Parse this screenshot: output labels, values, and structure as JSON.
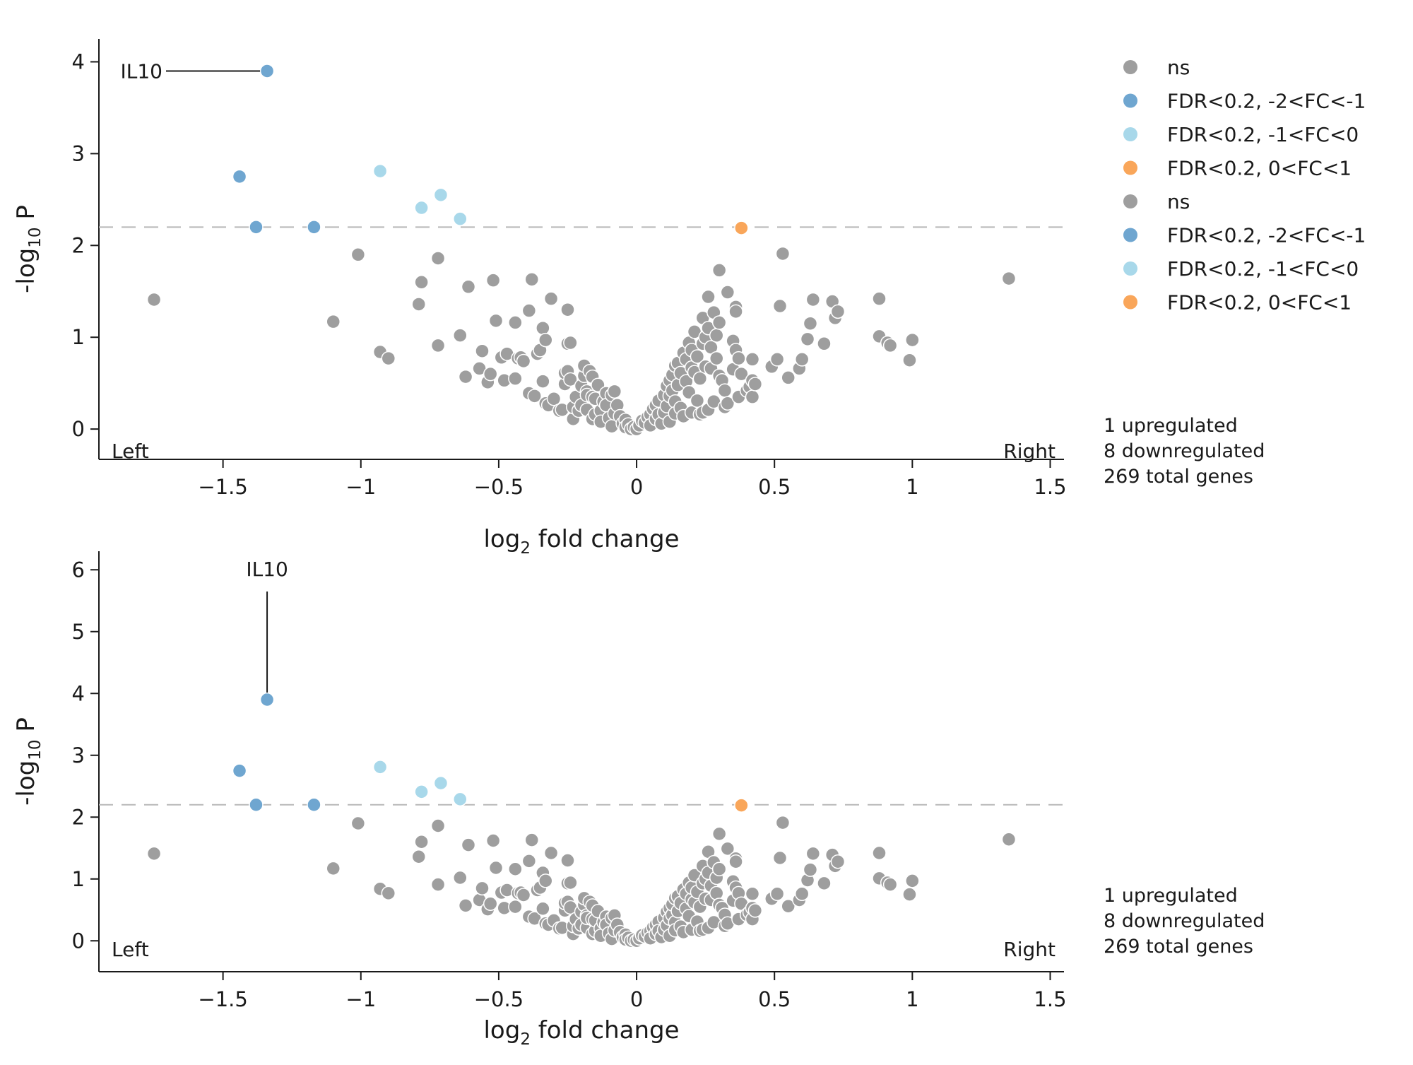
{
  "colors": {
    "ns": "#9e9e9e",
    "fc_m2_m1": "#6fa6d0",
    "fc_m1_0": "#a8d8ea",
    "fc_0_1": "#f9a65a",
    "threshold": "#b8b8b8",
    "axis": "#1a1a1a"
  },
  "legend": {
    "items": [
      {
        "label": "ns",
        "color_key": "ns"
      },
      {
        "label": "FDR<0.2, -2<FC<-1",
        "color_key": "fc_m2_m1"
      },
      {
        "label": "FDR<0.2, -1<FC<0",
        "color_key": "fc_m1_0"
      },
      {
        "label": "FDR<0.2, 0<FC<1",
        "color_key": "fc_0_1"
      },
      {
        "label": "ns",
        "color_key": "ns"
      },
      {
        "label": "FDR<0.2, -2<FC<-1",
        "color_key": "fc_m2_m1"
      },
      {
        "label": "FDR<0.2, -1<FC<0",
        "color_key": "fc_m1_0"
      },
      {
        "label": "FDR<0.2, 0<FC<1",
        "color_key": "fc_0_1"
      }
    ]
  },
  "chart_data": [
    {
      "type": "scatter",
      "title": "",
      "xlabel_main": "log",
      "xlabel_sub": "2",
      "xlabel_rest": " fold change",
      "ylabel_main": "-log",
      "ylabel_sub": "10",
      "ylabel_rest": " P",
      "xlim": [
        -1.95,
        1.55
      ],
      "ylim": [
        -0.33,
        4.25
      ],
      "xticks": [
        -1.5,
        -1,
        -0.5,
        0,
        0.5,
        1,
        1.5
      ],
      "xtick_labels": [
        "−1.5",
        "−1",
        "−0.5",
        "0",
        "0.5",
        "1",
        "1.5"
      ],
      "yticks": [
        0,
        1,
        2,
        3,
        4
      ],
      "ytick_labels": [
        "0",
        "1",
        "2",
        "3",
        "4"
      ],
      "threshold_y": 2.2,
      "corner_left": "Left",
      "corner_right": "Right",
      "summary": [
        "1 upregulated",
        "8 downregulated",
        "269 total genes"
      ],
      "gene_label": {
        "text": "IL10",
        "x": -1.34,
        "y": 3.9,
        "label_y": 3.9,
        "side": "left"
      },
      "grid": false,
      "legend_position": "right"
    },
    {
      "type": "scatter",
      "title": "",
      "xlabel_main": "log",
      "xlabel_sub": "2",
      "xlabel_rest": " fold change",
      "ylabel_main": "-log",
      "ylabel_sub": "10",
      "ylabel_rest": " P",
      "xlim": [
        -1.95,
        1.55
      ],
      "ylim": [
        -0.5,
        6.3
      ],
      "xticks": [
        -1.5,
        -1,
        -0.5,
        0,
        0.5,
        1,
        1.5
      ],
      "xtick_labels": [
        "−1.5",
        "−1",
        "−0.5",
        "0",
        "0.5",
        "1",
        "1.5"
      ],
      "yticks": [
        0,
        1,
        2,
        3,
        4,
        5,
        6
      ],
      "ytick_labels": [
        "0",
        "1",
        "2",
        "3",
        "4",
        "5",
        "6"
      ],
      "threshold_y": 2.2,
      "corner_left": "Left",
      "corner_right": "Right",
      "summary": [
        "1 upregulated",
        "8 downregulated",
        "269 total genes"
      ],
      "gene_label": {
        "text": "IL10",
        "x": -1.34,
        "y": 3.9,
        "label_y": 5.9,
        "side": "top"
      },
      "grid": false,
      "legend_position": "right"
    }
  ],
  "points": {
    "significant": [
      {
        "x": -1.34,
        "y": 3.9,
        "c": "fc_m2_m1",
        "gene": "IL10"
      },
      {
        "x": -1.44,
        "y": 2.75,
        "c": "fc_m2_m1"
      },
      {
        "x": -1.38,
        "y": 2.2,
        "c": "fc_m2_m1"
      },
      {
        "x": -1.17,
        "y": 2.2,
        "c": "fc_m2_m1"
      },
      {
        "x": -0.93,
        "y": 2.81,
        "c": "fc_m1_0"
      },
      {
        "x": -0.78,
        "y": 2.41,
        "c": "fc_m1_0"
      },
      {
        "x": -0.71,
        "y": 2.55,
        "c": "fc_m1_0"
      },
      {
        "x": -0.64,
        "y": 2.29,
        "c": "fc_m1_0"
      },
      {
        "x": 0.38,
        "y": 2.19,
        "c": "fc_0_1"
      }
    ],
    "ns": [
      [
        -1.75,
        1.41
      ],
      [
        -1.1,
        1.17
      ],
      [
        -1.01,
        1.9
      ],
      [
        -0.93,
        0.84
      ],
      [
        -0.9,
        0.77
      ],
      [
        -0.79,
        1.36
      ],
      [
        -0.78,
        1.6
      ],
      [
        -0.72,
        1.86
      ],
      [
        -0.72,
        0.91
      ],
      [
        -0.64,
        1.02
      ],
      [
        -0.62,
        0.57
      ],
      [
        -0.61,
        1.55
      ],
      [
        -0.57,
        0.66
      ],
      [
        -0.56,
        0.85
      ],
      [
        -0.54,
        0.51
      ],
      [
        -0.53,
        0.6
      ],
      [
        -0.52,
        1.62
      ],
      [
        -0.51,
        1.18
      ],
      [
        -0.49,
        0.78
      ],
      [
        -0.48,
        0.53
      ],
      [
        -0.47,
        0.82
      ],
      [
        -0.44,
        1.16
      ],
      [
        -0.44,
        0.55
      ],
      [
        -0.43,
        0.77
      ],
      [
        -0.42,
        0.78
      ],
      [
        -0.41,
        0.74
      ],
      [
        -0.39,
        1.29
      ],
      [
        -0.39,
        0.39
      ],
      [
        -0.38,
        1.63
      ],
      [
        -0.37,
        0.36
      ],
      [
        -0.36,
        0.82
      ],
      [
        -0.35,
        0.86
      ],
      [
        -0.34,
        1.1
      ],
      [
        -0.34,
        0.52
      ],
      [
        -0.33,
        0.97
      ],
      [
        -0.33,
        0.28
      ],
      [
        -0.32,
        0.26
      ],
      [
        -0.31,
        1.42
      ],
      [
        -0.3,
        0.33
      ],
      [
        -0.28,
        0.2
      ],
      [
        -0.27,
        0.21
      ],
      [
        -0.26,
        0.49
      ],
      [
        -0.26,
        0.61
      ],
      [
        -0.25,
        1.3
      ],
      [
        -0.25,
        0.63
      ],
      [
        -0.25,
        0.93
      ],
      [
        -0.24,
        0.94
      ],
      [
        -0.24,
        0.54
      ],
      [
        -0.23,
        0.11
      ],
      [
        -0.23,
        0.24
      ],
      [
        -0.22,
        0.35
      ],
      [
        -0.21,
        0.2
      ],
      [
        -0.2,
        0.47
      ],
      [
        -0.2,
        0.26
      ],
      [
        -0.19,
        0.58
      ],
      [
        -0.19,
        0.69
      ],
      [
        -0.18,
        0.41
      ],
      [
        -0.18,
        0.21
      ],
      [
        -0.18,
        0.37
      ],
      [
        -0.17,
        0.63
      ],
      [
        -0.16,
        0.57
      ],
      [
        -0.16,
        0.11
      ],
      [
        -0.16,
        0.35
      ],
      [
        -0.15,
        0.16
      ],
      [
        -0.15,
        0.33
      ],
      [
        -0.14,
        0.48
      ],
      [
        -0.13,
        0.2
      ],
      [
        -0.13,
        0.08
      ],
      [
        -0.12,
        0.3
      ],
      [
        -0.11,
        0.39
      ],
      [
        -0.11,
        0.26
      ],
      [
        -0.1,
        0.12
      ],
      [
        -0.09,
        0.37
      ],
      [
        -0.09,
        0.03
      ],
      [
        -0.08,
        0.41
      ],
      [
        -0.08,
        0.17
      ],
      [
        -0.07,
        0.26
      ],
      [
        -0.06,
        0.14
      ],
      [
        -0.05,
        0.06
      ],
      [
        -0.04,
        0.1
      ],
      [
        -0.04,
        0.02
      ],
      [
        -0.03,
        0.05
      ],
      [
        -0.02,
        0.0
      ],
      [
        -0.01,
        0.02
      ],
      [
        0.0,
        0.0
      ],
      [
        0.01,
        0.04
      ],
      [
        0.02,
        0.09
      ],
      [
        0.03,
        0.07
      ],
      [
        0.04,
        0.13
      ],
      [
        0.05,
        0.16
      ],
      [
        0.05,
        0.04
      ],
      [
        0.06,
        0.22
      ],
      [
        0.07,
        0.11
      ],
      [
        0.07,
        0.26
      ],
      [
        0.08,
        0.31
      ],
      [
        0.08,
        0.16
      ],
      [
        0.09,
        0.06
      ],
      [
        0.1,
        0.37
      ],
      [
        0.1,
        0.18
      ],
      [
        0.11,
        0.47
      ],
      [
        0.11,
        0.25
      ],
      [
        0.12,
        0.53
      ],
      [
        0.12,
        0.36
      ],
      [
        0.12,
        0.08
      ],
      [
        0.13,
        0.42
      ],
      [
        0.13,
        0.59
      ],
      [
        0.14,
        0.69
      ],
      [
        0.14,
        0.3
      ],
      [
        0.14,
        0.17
      ],
      [
        0.15,
        0.72
      ],
      [
        0.15,
        0.48
      ],
      [
        0.16,
        0.61
      ],
      [
        0.16,
        0.23
      ],
      [
        0.17,
        0.83
      ],
      [
        0.17,
        0.14
      ],
      [
        0.18,
        0.76
      ],
      [
        0.18,
        0.52
      ],
      [
        0.19,
        0.94
      ],
      [
        0.19,
        0.4
      ],
      [
        0.2,
        0.67
      ],
      [
        0.2,
        0.18
      ],
      [
        0.2,
        0.86
      ],
      [
        0.21,
        1.06
      ],
      [
        0.21,
        0.62
      ],
      [
        0.22,
        0.31
      ],
      [
        0.22,
        0.79
      ],
      [
        0.23,
        0.55
      ],
      [
        0.23,
        0.16
      ],
      [
        0.24,
        1.21
      ],
      [
        0.24,
        0.93
      ],
      [
        0.24,
        0.18
      ],
      [
        0.25,
        0.68
      ],
      [
        0.25,
        1.0
      ],
      [
        0.26,
        1.44
      ],
      [
        0.26,
        0.21
      ],
      [
        0.26,
        1.1
      ],
      [
        0.27,
        0.66
      ],
      [
        0.27,
        0.89
      ],
      [
        0.28,
        1.27
      ],
      [
        0.28,
        0.3
      ],
      [
        0.29,
        1.02
      ],
      [
        0.29,
        0.77
      ],
      [
        0.3,
        1.73
      ],
      [
        0.3,
        1.16
      ],
      [
        0.3,
        0.58
      ],
      [
        0.31,
        0.53
      ],
      [
        0.32,
        0.42
      ],
      [
        0.32,
        0.24
      ],
      [
        0.33,
        1.49
      ],
      [
        0.33,
        0.28
      ],
      [
        0.35,
        0.96
      ],
      [
        0.35,
        0.65
      ],
      [
        0.36,
        1.33
      ],
      [
        0.36,
        0.86
      ],
      [
        0.36,
        1.28
      ],
      [
        0.37,
        0.77
      ],
      [
        0.37,
        0.35
      ],
      [
        0.38,
        0.6
      ],
      [
        0.4,
        0.42
      ],
      [
        0.41,
        0.46
      ],
      [
        0.42,
        0.35
      ],
      [
        0.42,
        0.76
      ],
      [
        0.42,
        0.53
      ],
      [
        0.43,
        0.49
      ],
      [
        0.49,
        0.68
      ],
      [
        0.51,
        0.76
      ],
      [
        0.52,
        1.34
      ],
      [
        0.53,
        1.91
      ],
      [
        0.55,
        0.56
      ],
      [
        0.59,
        0.66
      ],
      [
        0.6,
        0.76
      ],
      [
        0.62,
        0.98
      ],
      [
        0.63,
        1.15
      ],
      [
        0.64,
        1.41
      ],
      [
        0.68,
        0.93
      ],
      [
        0.71,
        1.39
      ],
      [
        0.72,
        1.21
      ],
      [
        0.73,
        1.28
      ],
      [
        0.88,
        1.42
      ],
      [
        0.88,
        1.01
      ],
      [
        0.91,
        0.94
      ],
      [
        0.92,
        0.91
      ],
      [
        0.99,
        0.75
      ],
      [
        1.0,
        0.97
      ],
      [
        1.35,
        1.64
      ]
    ]
  }
}
